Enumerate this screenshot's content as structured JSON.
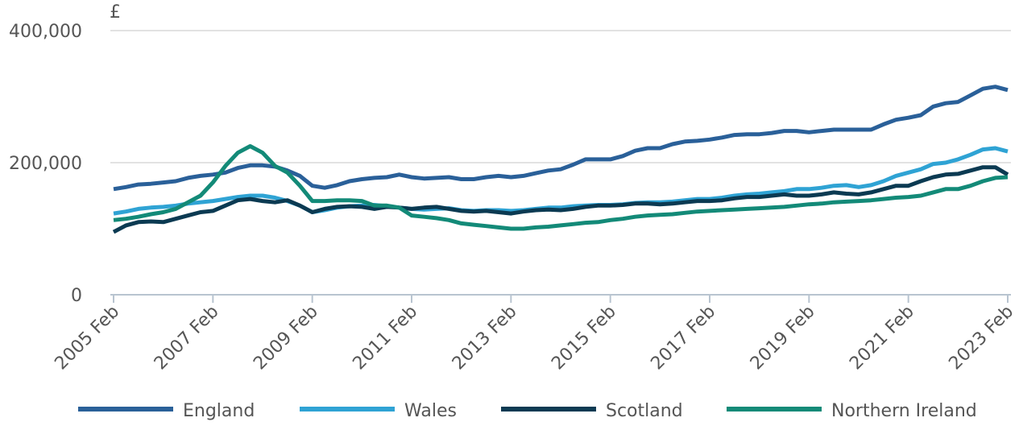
{
  "chart_data": {
    "type": "line",
    "y_label": "£",
    "categories": [
      "2005 Feb",
      null,
      null,
      null,
      null,
      null,
      null,
      null,
      "2007 Feb",
      null,
      null,
      null,
      null,
      null,
      null,
      null,
      "2009 Feb",
      null,
      null,
      null,
      null,
      null,
      null,
      null,
      "2011 Feb",
      null,
      null,
      null,
      null,
      null,
      null,
      null,
      "2013 Feb",
      null,
      null,
      null,
      null,
      null,
      null,
      null,
      "2015 Feb",
      null,
      null,
      null,
      null,
      null,
      null,
      null,
      "2017 Feb",
      null,
      null,
      null,
      null,
      null,
      null,
      null,
      "2019 Feb",
      null,
      null,
      null,
      null,
      null,
      null,
      null,
      "2021 Feb",
      null,
      null,
      null,
      null,
      null,
      null,
      null,
      "2023 Feb"
    ],
    "ylim": [
      0,
      400000
    ],
    "yticks": [
      0,
      {
        "value": 200000,
        "label": "200,000"
      },
      {
        "value": 400000,
        "label": "400,000"
      }
    ],
    "grid": true,
    "legend": "bottom",
    "series": [
      {
        "name": "England",
        "color": "#2a6099",
        "values": [
          160000,
          163000,
          167000,
          168000,
          170000,
          172000,
          177000,
          180000,
          182000,
          185000,
          192000,
          196000,
          196000,
          194000,
          188000,
          180000,
          165000,
          162000,
          166000,
          172000,
          175000,
          177000,
          178000,
          182000,
          178000,
          176000,
          177000,
          178000,
          175000,
          175000,
          178000,
          180000,
          178000,
          180000,
          184000,
          188000,
          190000,
          197000,
          205000,
          205000,
          205000,
          210000,
          218000,
          222000,
          222000,
          228000,
          232000,
          233000,
          235000,
          238000,
          242000,
          243000,
          243000,
          245000,
          248000,
          248000,
          246000,
          248000,
          250000,
          250000,
          250000,
          250000,
          258000,
          265000,
          268000,
          272000,
          285000,
          290000,
          292000,
          302000,
          312000,
          315000,
          310000
        ]
      },
      {
        "name": "Wales",
        "color": "#2fa3d4",
        "values": [
          123000,
          126000,
          130000,
          132000,
          133000,
          135000,
          138000,
          140000,
          142000,
          145000,
          148000,
          150000,
          150000,
          147000,
          142000,
          135000,
          125000,
          128000,
          132000,
          134000,
          135000,
          136000,
          134000,
          132000,
          130000,
          129000,
          130000,
          131000,
          128000,
          127000,
          128000,
          128000,
          127000,
          128000,
          130000,
          132000,
          132000,
          134000,
          135000,
          136000,
          136000,
          137000,
          139000,
          140000,
          140000,
          141000,
          143000,
          145000,
          145000,
          147000,
          150000,
          152000,
          153000,
          155000,
          157000,
          160000,
          160000,
          162000,
          165000,
          166000,
          163000,
          166000,
          172000,
          180000,
          185000,
          190000,
          198000,
          200000,
          205000,
          212000,
          220000,
          222000,
          217000
        ]
      },
      {
        "name": "Scotland",
        "color": "#0b3a52",
        "values": [
          95000,
          105000,
          110000,
          111000,
          110000,
          115000,
          120000,
          125000,
          127000,
          135000,
          143000,
          145000,
          142000,
          140000,
          143000,
          135000,
          125000,
          130000,
          133000,
          134000,
          133000,
          130000,
          133000,
          132000,
          130000,
          132000,
          133000,
          130000,
          127000,
          126000,
          127000,
          125000,
          123000,
          126000,
          128000,
          129000,
          128000,
          130000,
          133000,
          135000,
          135000,
          136000,
          138000,
          138000,
          137000,
          138000,
          140000,
          142000,
          142000,
          143000,
          146000,
          148000,
          148000,
          150000,
          152000,
          150000,
          150000,
          152000,
          155000,
          153000,
          152000,
          155000,
          160000,
          165000,
          165000,
          172000,
          178000,
          182000,
          183000,
          188000,
          193000,
          193000,
          182000
        ]
      },
      {
        "name": "Northern Ireland",
        "color": "#138a78",
        "values": [
          113000,
          115000,
          118000,
          122000,
          125000,
          130000,
          140000,
          150000,
          170000,
          195000,
          215000,
          225000,
          215000,
          195000,
          185000,
          165000,
          142000,
          142000,
          143000,
          143000,
          142000,
          135000,
          135000,
          132000,
          120000,
          118000,
          116000,
          113000,
          108000,
          106000,
          104000,
          102000,
          100000,
          100000,
          102000,
          103000,
          105000,
          107000,
          109000,
          110000,
          113000,
          115000,
          118000,
          120000,
          121000,
          122000,
          124000,
          126000,
          127000,
          128000,
          129000,
          130000,
          131000,
          132000,
          133000,
          135000,
          137000,
          138000,
          140000,
          141000,
          142000,
          143000,
          145000,
          147000,
          148000,
          150000,
          155000,
          160000,
          160000,
          165000,
          172000,
          177000,
          178000
        ]
      }
    ]
  }
}
